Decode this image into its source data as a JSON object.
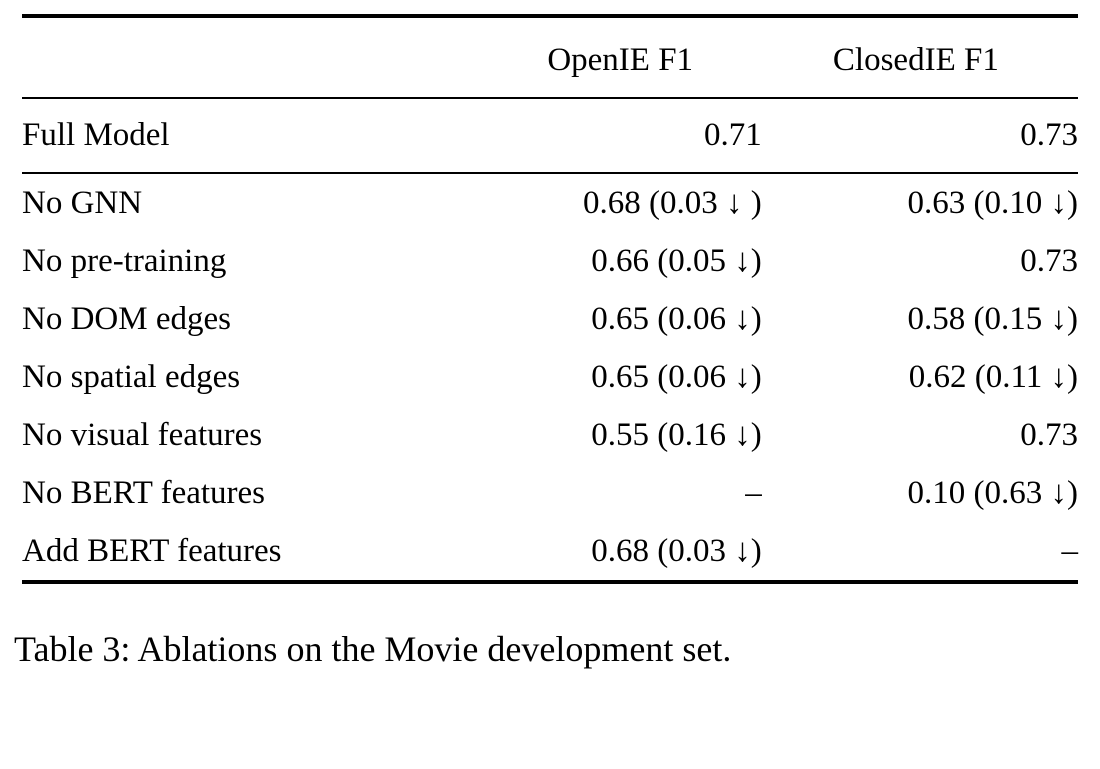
{
  "header": {
    "col1": "",
    "col2": "OpenIE F1",
    "col3": "ClosedIE F1"
  },
  "rows": [
    {
      "label": "Full Model",
      "openie": "0.71",
      "closedie": "0.73"
    },
    {
      "label": "No GNN",
      "openie": "0.68 (0.03 ↓ )",
      "closedie": "0.63 (0.10 ↓)"
    },
    {
      "label": "No pre-training",
      "openie": "0.66 (0.05 ↓)",
      "closedie": "0.73"
    },
    {
      "label": "No DOM edges",
      "openie": "0.65 (0.06 ↓)",
      "closedie": "0.58 (0.15 ↓)"
    },
    {
      "label": "No spatial edges",
      "openie": "0.65 (0.06 ↓)",
      "closedie": "0.62 (0.11 ↓)"
    },
    {
      "label": "No visual features",
      "openie": "0.55 (0.16 ↓)",
      "closedie": "0.73"
    },
    {
      "label": "No BERT features",
      "openie": "–",
      "closedie": "0.10 (0.63 ↓)"
    },
    {
      "label": "Add BERT features",
      "openie": "0.68 (0.03 ↓)",
      "closedie": "–"
    }
  ],
  "caption": "Table 3: Ablations on the Movie development set."
}
